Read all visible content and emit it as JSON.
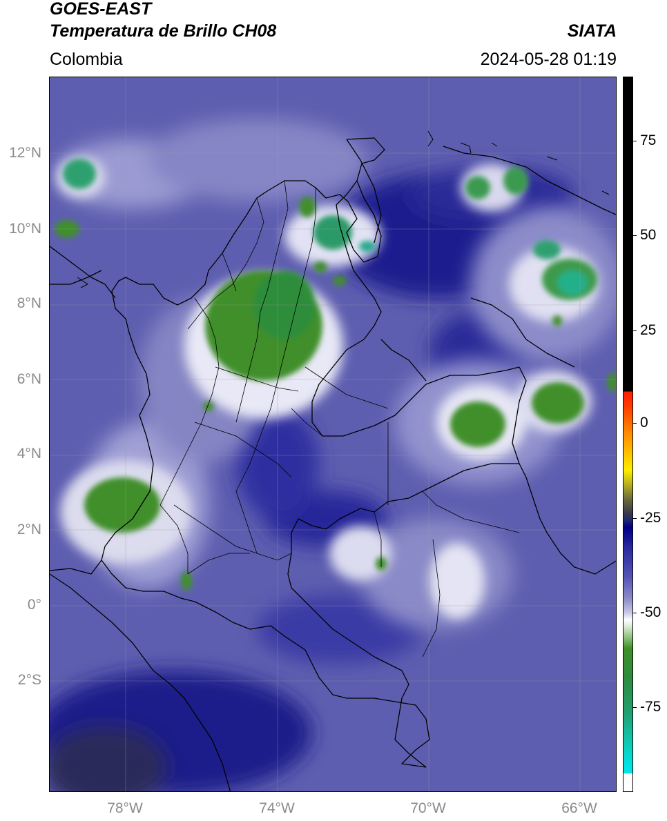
{
  "header": {
    "line1": "GOES-EAST",
    "line2": "Temperatura de Brillo CH08",
    "source": "SIATA",
    "region": "Colombia",
    "datetime": "2024-05-28 01:19"
  },
  "map": {
    "lat_ticks": [
      "12°N",
      "10°N",
      "8°N",
      "6°N",
      "4°N",
      "2°N",
      "0°",
      "2°S"
    ],
    "lon_ticks": [
      "78°W",
      "74°W",
      "70°W",
      "66°W"
    ],
    "colors": {
      "background_cold": "#5c5cae",
      "deep_blue": "#1e1e8e",
      "convective_green": "#3f8f2a",
      "convective_core": "#20b08a",
      "grid": "#9a9a9a",
      "borders": "#000000"
    }
  },
  "colorbar": {
    "ticks": [
      "75",
      "50",
      "25",
      "0",
      "-25",
      "-50",
      "-75"
    ]
  }
}
